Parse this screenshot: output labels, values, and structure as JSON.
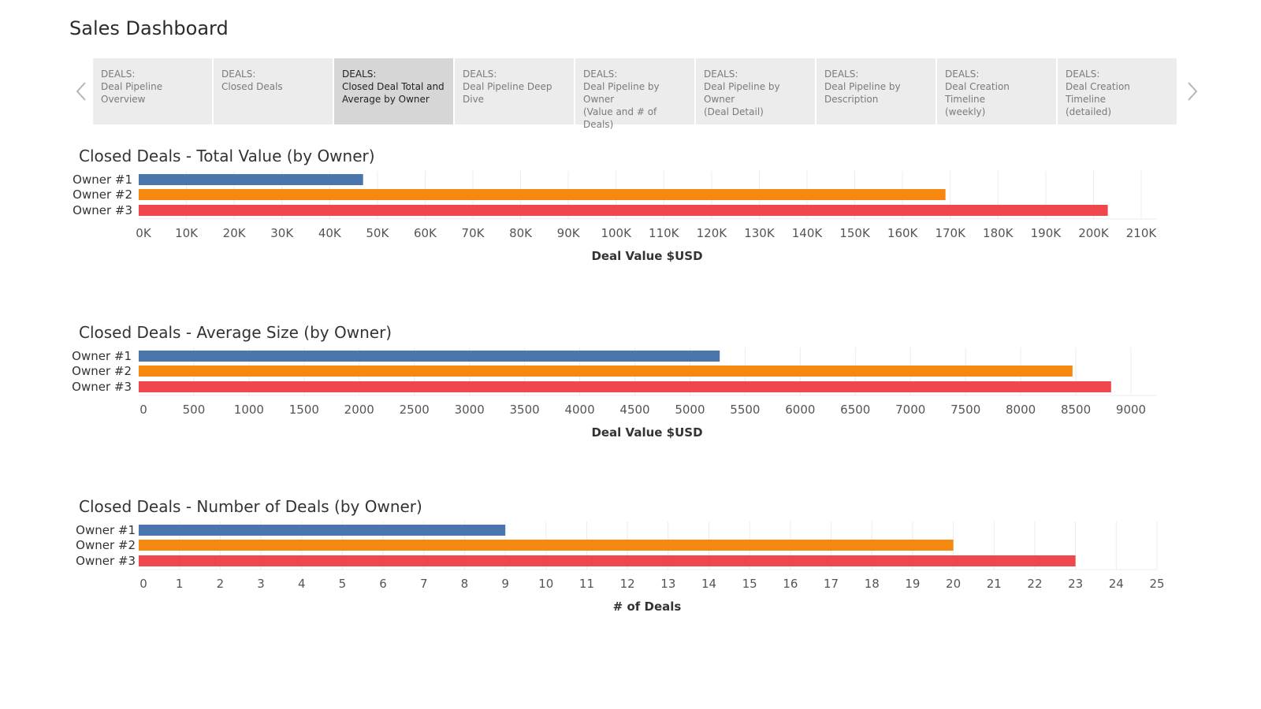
{
  "dashboard": {
    "title": "Sales Dashboard"
  },
  "tabs": [
    {
      "category": "DEALS:",
      "label": "Deal Pipeline Overview",
      "active": false
    },
    {
      "category": "DEALS:",
      "label": "Closed Deals",
      "active": false
    },
    {
      "category": "DEALS:",
      "label": "Closed Deal Total and\nAverage by Owner",
      "active": true
    },
    {
      "category": "DEALS:",
      "label": "Deal Pipeline Deep\nDive",
      "active": false
    },
    {
      "category": "DEALS:",
      "label": "Deal Pipeline by Owner\n(Value and # of Deals)",
      "active": false
    },
    {
      "category": "DEALS:",
      "label": "Deal Pipeline by Owner\n(Deal Detail)",
      "active": false
    },
    {
      "category": "DEALS:",
      "label": "Deal Pipeline by\nDescription",
      "active": false
    },
    {
      "category": "DEALS:",
      "label": "Deal Creation Timeline\n(weekly)",
      "active": false
    },
    {
      "category": "DEALS:",
      "label": "Deal Creation Timeline\n(detailed)",
      "active": false
    }
  ],
  "colors": {
    "owner1": "#4a76ad",
    "owner2": "#f7880f",
    "owner3": "#f0474f",
    "grid": "#ececec"
  },
  "chart_data": [
    {
      "type": "bar",
      "orientation": "horizontal",
      "title": "Closed Deals - Total Value (by Owner)",
      "categories": [
        "Owner #1",
        "Owner #2",
        "Owner #3"
      ],
      "values": [
        47000,
        169000,
        203000
      ],
      "xlabel": "Deal Value $USD",
      "xlim": [
        0,
        210000
      ],
      "ticks": [
        0,
        10000,
        20000,
        30000,
        40000,
        50000,
        60000,
        70000,
        80000,
        90000,
        100000,
        110000,
        120000,
        130000,
        140000,
        150000,
        160000,
        170000,
        180000,
        190000,
        200000,
        210000
      ],
      "tick_labels": [
        "0K",
        "10K",
        "20K",
        "30K",
        "40K",
        "50K",
        "60K",
        "70K",
        "80K",
        "90K",
        "100K",
        "110K",
        "120K",
        "130K",
        "140K",
        "150K",
        "160K",
        "170K",
        "180K",
        "190K",
        "200K",
        "210K"
      ],
      "grid": true
    },
    {
      "type": "bar",
      "orientation": "horizontal",
      "title": "Closed Deals - Average Size (by Owner)",
      "categories": [
        "Owner #1",
        "Owner #2",
        "Owner #3"
      ],
      "values": [
        5270,
        8470,
        8820
      ],
      "xlabel": "Deal Value $USD",
      "xlim": [
        0,
        9000
      ],
      "ticks": [
        0,
        500,
        1000,
        1500,
        2000,
        2500,
        3000,
        3500,
        4000,
        4500,
        5000,
        5500,
        6000,
        6500,
        7000,
        7500,
        8000,
        8500,
        9000
      ],
      "tick_labels": [
        "0",
        "500",
        "1000",
        "1500",
        "2000",
        "2500",
        "3000",
        "3500",
        "4000",
        "4500",
        "5000",
        "5500",
        "6000",
        "6500",
        "7000",
        "7500",
        "8000",
        "8500",
        "9000"
      ],
      "grid": true
    },
    {
      "type": "bar",
      "orientation": "horizontal",
      "title": "Closed Deals - Number of Deals (by Owner)",
      "categories": [
        "Owner #1",
        "Owner #2",
        "Owner #3"
      ],
      "values": [
        9,
        20,
        23
      ],
      "xlabel": "# of Deals",
      "xlim": [
        0,
        25
      ],
      "ticks": [
        0,
        1,
        2,
        3,
        4,
        5,
        6,
        7,
        8,
        9,
        10,
        11,
        12,
        13,
        14,
        15,
        16,
        17,
        18,
        19,
        20,
        21,
        22,
        23,
        24,
        25
      ],
      "tick_labels": [
        "0",
        "1",
        "2",
        "3",
        "4",
        "5",
        "6",
        "7",
        "8",
        "9",
        "10",
        "11",
        "12",
        "13",
        "14",
        "15",
        "16",
        "17",
        "18",
        "19",
        "20",
        "21",
        "22",
        "23",
        "24",
        "25"
      ],
      "grid": true
    }
  ]
}
